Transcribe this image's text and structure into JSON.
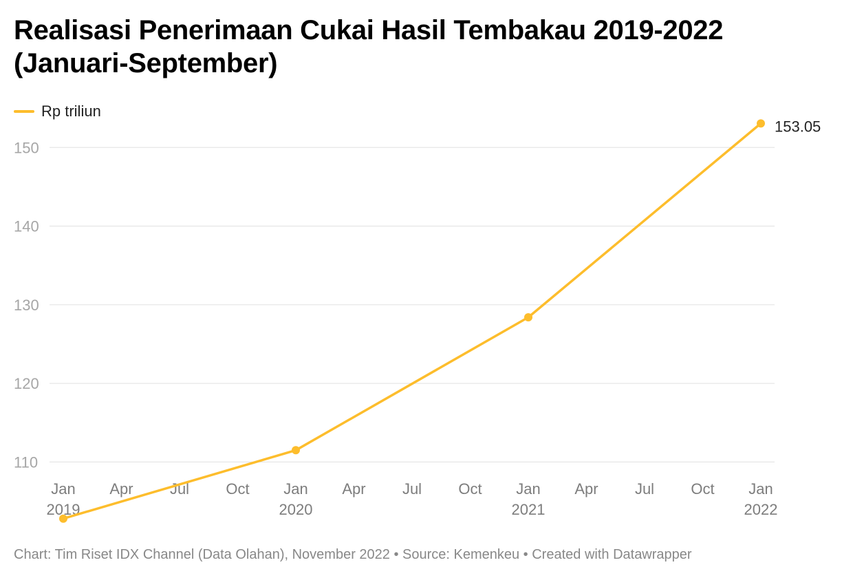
{
  "chart_data": {
    "type": "line",
    "title": "Realisasi Penerimaan Cukai Hasil Tembakau 2019-2022 (Januari-September)",
    "series": [
      {
        "name": "Rp triliun",
        "color": "#fdbd2c",
        "points": [
          {
            "x": "2019-01",
            "y": 102.8
          },
          {
            "x": "2020-01",
            "y": 111.5
          },
          {
            "x": "2021-01",
            "y": 128.4
          },
          {
            "x": "2022-01",
            "y": 153.05
          }
        ]
      }
    ],
    "end_label": "153.05",
    "ylim": [
      100.5,
      156.5
    ],
    "yticks": [
      {
        "value": 110,
        "label": "110"
      },
      {
        "value": 120,
        "label": "120"
      },
      {
        "value": 130,
        "label": "130"
      },
      {
        "value": 140,
        "label": "140"
      },
      {
        "value": 150,
        "label": "150"
      }
    ],
    "xticks": [
      {
        "x": "2019-01",
        "label": "Jan",
        "year": "2019"
      },
      {
        "x": "2019-04",
        "label": "Apr",
        "year": ""
      },
      {
        "x": "2019-07",
        "label": "Jul",
        "year": ""
      },
      {
        "x": "2019-10",
        "label": "Oct",
        "year": ""
      },
      {
        "x": "2020-01",
        "label": "Jan",
        "year": "2020"
      },
      {
        "x": "2020-04",
        "label": "Apr",
        "year": ""
      },
      {
        "x": "2020-07",
        "label": "Jul",
        "year": ""
      },
      {
        "x": "2020-10",
        "label": "Oct",
        "year": ""
      },
      {
        "x": "2021-01",
        "label": "Jan",
        "year": "2021"
      },
      {
        "x": "2021-04",
        "label": "Apr",
        "year": ""
      },
      {
        "x": "2021-07",
        "label": "Jul",
        "year": ""
      },
      {
        "x": "2021-10",
        "label": "Oct",
        "year": ""
      },
      {
        "x": "2022-01",
        "label": "Jan",
        "year": "2022"
      }
    ],
    "grid": true,
    "legend_position": "top-left"
  },
  "footer": "Chart: Tim Riset IDX Channel (Data Olahan), November 2022 • Source: Kemenkeu • Created with Datawrapper"
}
